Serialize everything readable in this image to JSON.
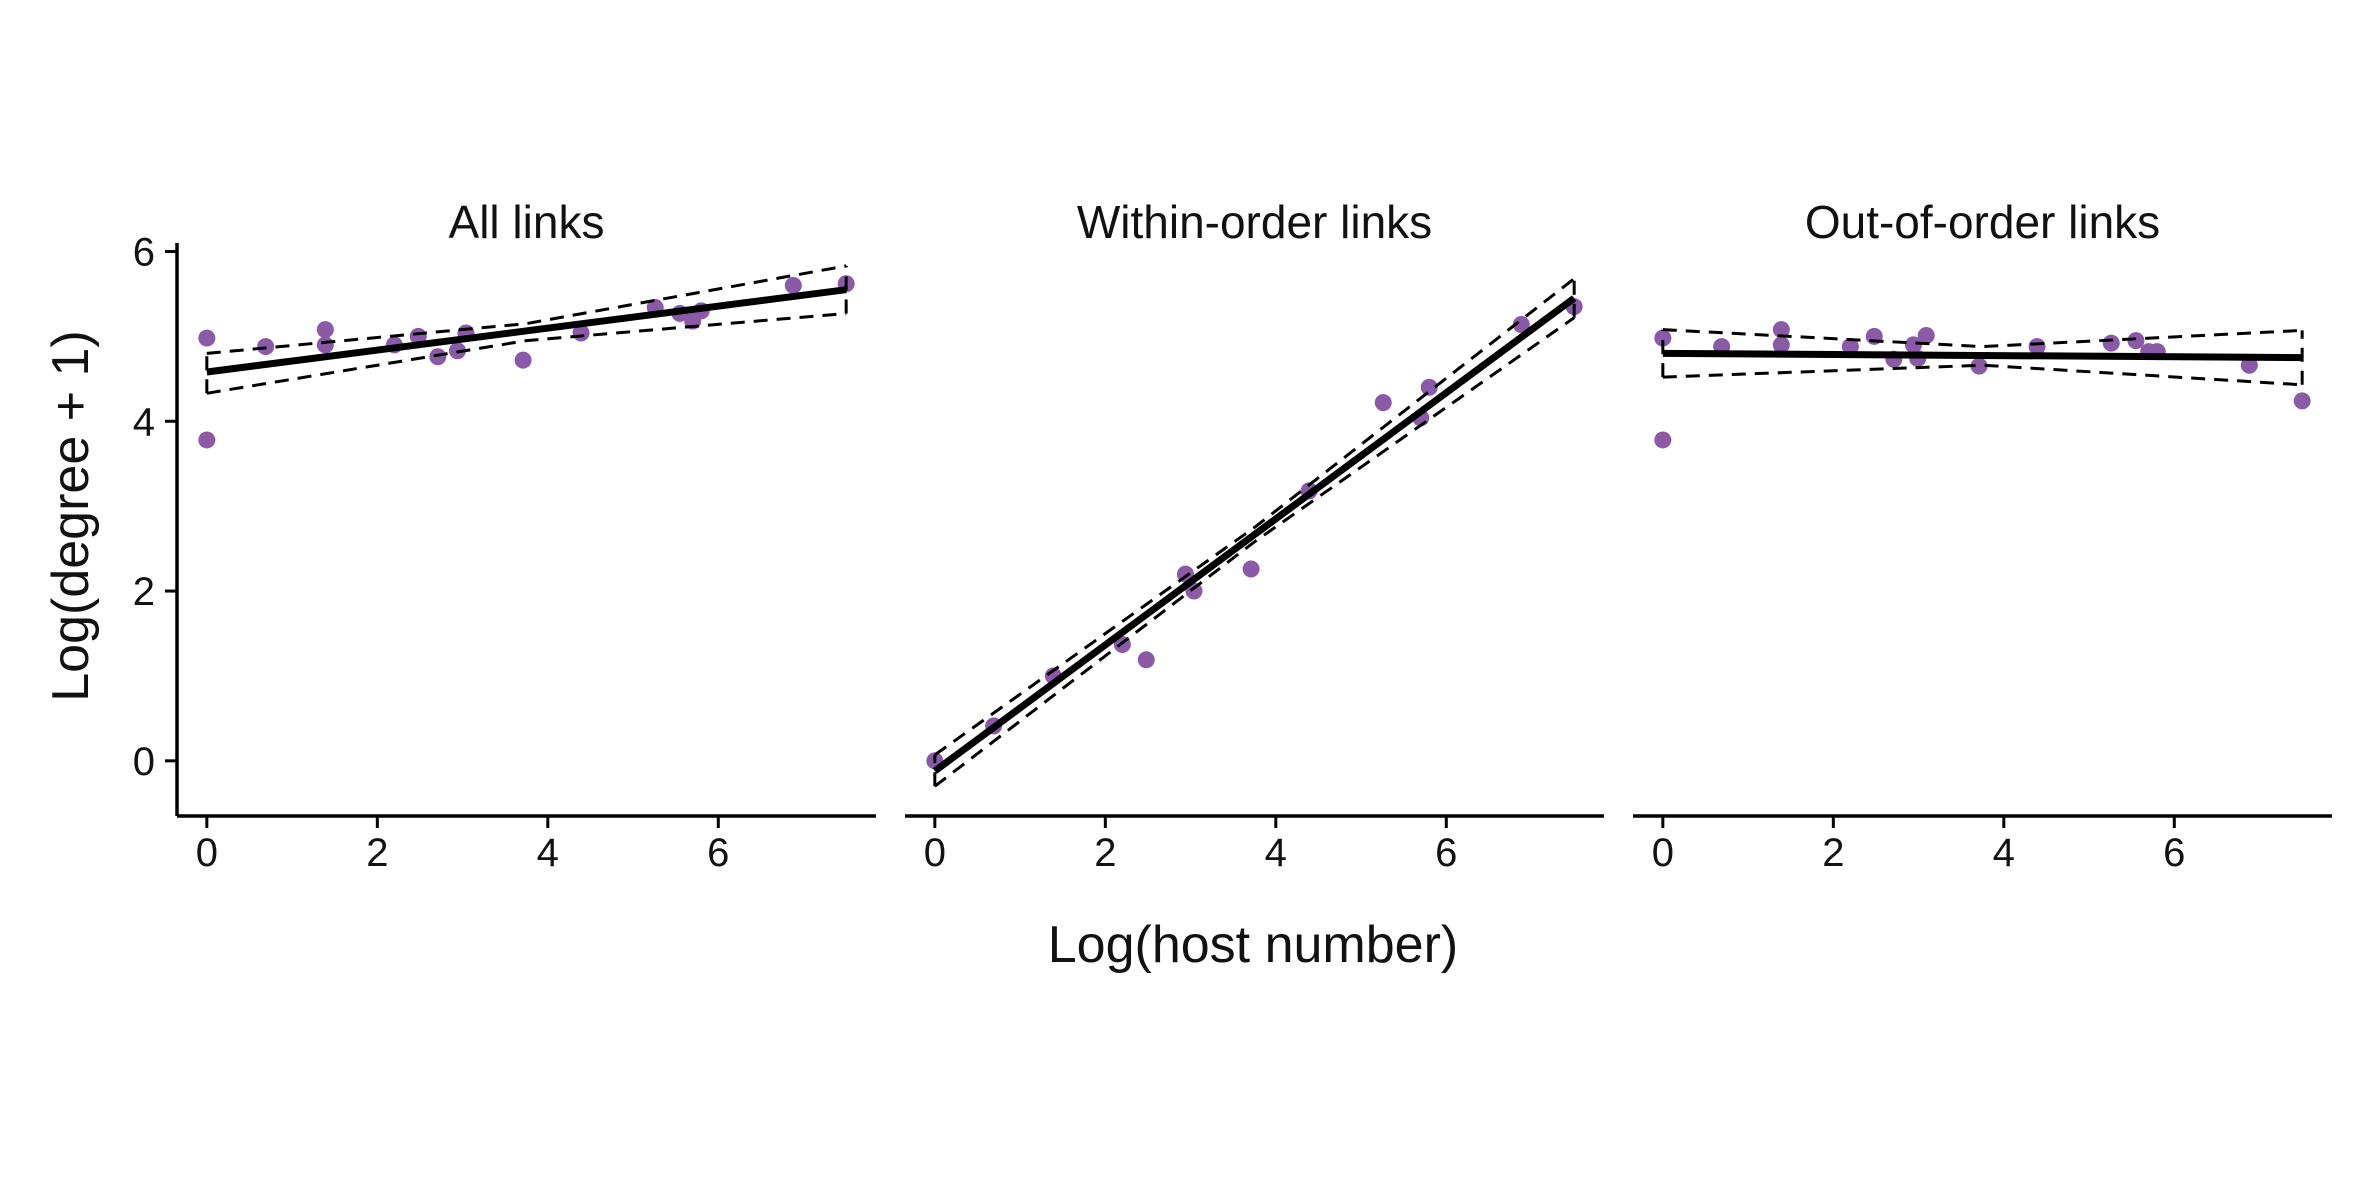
{
  "chart_data": {
    "type": "scatter",
    "xlabel": "Log(host number)",
    "ylabel": "Log(degree + 1)",
    "xlim": [
      -0.35,
      7.85
    ],
    "ylim": [
      -0.65,
      6.1
    ],
    "xticks": [
      0,
      2,
      4,
      6
    ],
    "yticks": [
      0,
      2,
      4,
      6
    ],
    "point_color": "#8a5aa8",
    "line_color": "#000000",
    "facets": [
      {
        "title": "All links",
        "points": [
          {
            "x": 0,
            "y": 4.98
          },
          {
            "x": 0,
            "y": 3.78
          },
          {
            "x": 0.69,
            "y": 4.88
          },
          {
            "x": 1.39,
            "y": 5.08
          },
          {
            "x": 1.39,
            "y": 4.9
          },
          {
            "x": 2.2,
            "y": 4.9
          },
          {
            "x": 2.48,
            "y": 5.0
          },
          {
            "x": 2.71,
            "y": 4.76
          },
          {
            "x": 2.94,
            "y": 4.83
          },
          {
            "x": 3.04,
            "y": 5.04
          },
          {
            "x": 3.71,
            "y": 4.72
          },
          {
            "x": 4.39,
            "y": 5.04
          },
          {
            "x": 5.26,
            "y": 5.34
          },
          {
            "x": 5.55,
            "y": 5.27
          },
          {
            "x": 5.7,
            "y": 5.18
          },
          {
            "x": 5.8,
            "y": 5.3
          },
          {
            "x": 6.88,
            "y": 5.6
          },
          {
            "x": 7.5,
            "y": 5.62
          }
        ],
        "fit": {
          "x": [
            0,
            7.5
          ],
          "y": [
            4.58,
            5.55
          ]
        },
        "ci_lower": {
          "x": [
            0,
            3.75,
            7.5
          ],
          "y": [
            4.33,
            4.95,
            5.27
          ]
        },
        "ci_upper": {
          "x": [
            0,
            3.75,
            7.5
          ],
          "y": [
            4.8,
            5.15,
            5.83
          ]
        }
      },
      {
        "title": "Within-order links",
        "points": [
          {
            "x": 0,
            "y": 0.0
          },
          {
            "x": 0.69,
            "y": 0.41
          },
          {
            "x": 1.39,
            "y": 1.0
          },
          {
            "x": 2.2,
            "y": 1.37
          },
          {
            "x": 2.48,
            "y": 1.19
          },
          {
            "x": 2.94,
            "y": 2.2
          },
          {
            "x": 3.04,
            "y": 2.0
          },
          {
            "x": 3.71,
            "y": 2.26
          },
          {
            "x": 4.39,
            "y": 3.18
          },
          {
            "x": 5.26,
            "y": 4.22
          },
          {
            "x": 5.7,
            "y": 4.04
          },
          {
            "x": 5.8,
            "y": 4.4
          },
          {
            "x": 6.88,
            "y": 5.14
          },
          {
            "x": 7.5,
            "y": 5.35
          }
        ],
        "fit": {
          "x": [
            0,
            7.5
          ],
          "y": [
            -0.12,
            5.45
          ]
        },
        "ci_lower": {
          "x": [
            0,
            3.75,
            7.5
          ],
          "y": [
            -0.3,
            2.58,
            5.22
          ]
        },
        "ci_upper": {
          "x": [
            0,
            3.75,
            7.5
          ],
          "y": [
            0.07,
            2.75,
            5.68
          ]
        }
      },
      {
        "title": "Out-of-order links",
        "points": [
          {
            "x": 0,
            "y": 4.98
          },
          {
            "x": 0,
            "y": 3.78
          },
          {
            "x": 0.69,
            "y": 4.88
          },
          {
            "x": 1.39,
            "y": 5.08
          },
          {
            "x": 1.39,
            "y": 4.9
          },
          {
            "x": 2.2,
            "y": 4.88
          },
          {
            "x": 2.48,
            "y": 5.0
          },
          {
            "x": 2.71,
            "y": 4.73
          },
          {
            "x": 2.94,
            "y": 4.9
          },
          {
            "x": 2.99,
            "y": 4.74
          },
          {
            "x": 3.09,
            "y": 5.01
          },
          {
            "x": 3.71,
            "y": 4.65
          },
          {
            "x": 4.39,
            "y": 4.88
          },
          {
            "x": 5.26,
            "y": 4.92
          },
          {
            "x": 5.55,
            "y": 4.95
          },
          {
            "x": 5.7,
            "y": 4.82
          },
          {
            "x": 5.8,
            "y": 4.82
          },
          {
            "x": 6.88,
            "y": 4.66
          },
          {
            "x": 7.5,
            "y": 4.24
          }
        ],
        "fit": {
          "x": [
            0,
            7.5
          ],
          "y": [
            4.8,
            4.75
          ]
        },
        "ci_lower": {
          "x": [
            0,
            3.75,
            7.5
          ],
          "y": [
            4.52,
            4.66,
            4.43
          ]
        },
        "ci_upper": {
          "x": [
            0,
            3.75,
            7.5
          ],
          "y": [
            5.08,
            4.88,
            5.07
          ]
        }
      }
    ]
  }
}
